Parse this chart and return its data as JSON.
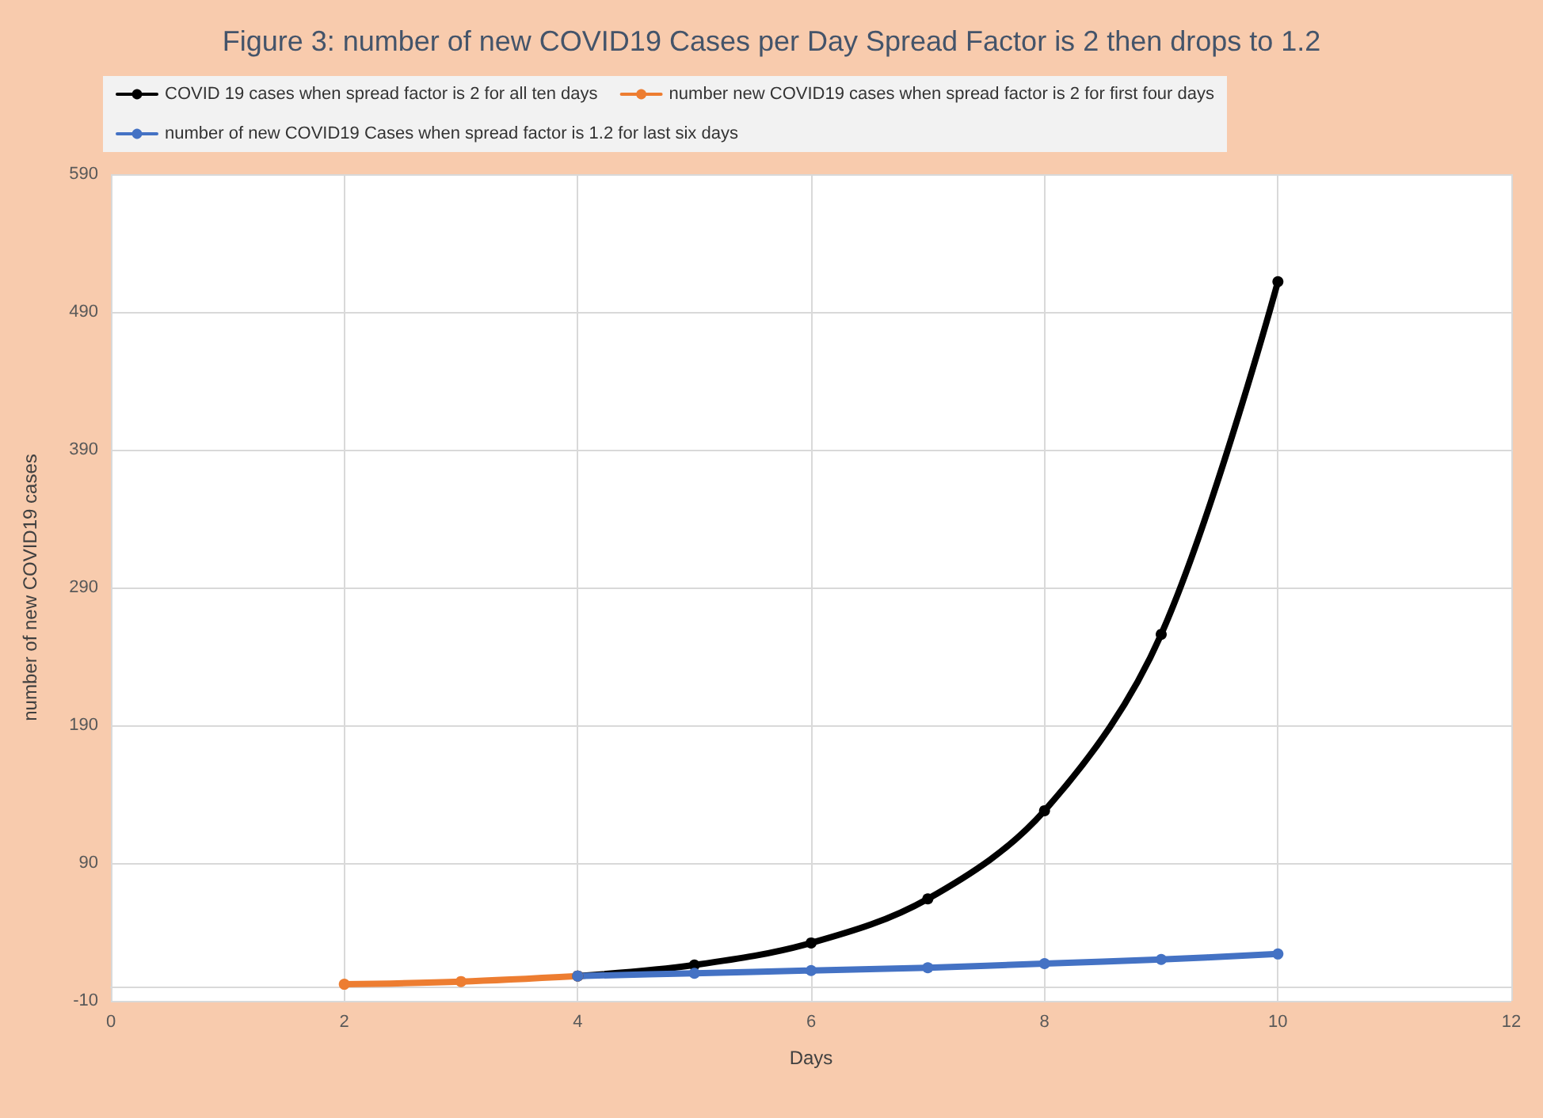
{
  "chart_data": {
    "type": "line",
    "title": "Figure 3: number of new COVID19 Cases per Day Spread Factor is 2 then drops to 1.2",
    "xlabel": "Days",
    "ylabel": "number of new COVID19 cases",
    "series": [
      {
        "name": "COVID 19 cases when spread factor is 2 for all ten days",
        "color": "#000000",
        "x": [
          4,
          5,
          6,
          7,
          8,
          9,
          10
        ],
        "values": [
          8,
          16,
          32,
          64,
          128,
          256,
          512
        ]
      },
      {
        "name": "number new COVID19 cases when spread factor is 2 for first four days",
        "color": "#ed7d31",
        "x": [
          2,
          3,
          4
        ],
        "values": [
          2,
          4,
          8
        ]
      },
      {
        "name": "number of new COVID19 Cases when spread factor is 1.2 for last six days",
        "color": "#4472c4",
        "x": [
          4,
          5,
          6,
          7,
          8,
          9,
          10
        ],
        "values": [
          8,
          10,
          12,
          14,
          17,
          20,
          24
        ]
      }
    ],
    "xlim": [
      0,
      12
    ],
    "xticks": [
      0,
      2,
      4,
      6,
      8,
      10,
      12
    ],
    "ylim": [
      -10,
      590
    ],
    "yticks": [
      -10,
      90,
      190,
      290,
      390,
      490,
      590
    ],
    "grid": true,
    "legend": "top",
    "marker": "circle",
    "line_style": "solid"
  }
}
